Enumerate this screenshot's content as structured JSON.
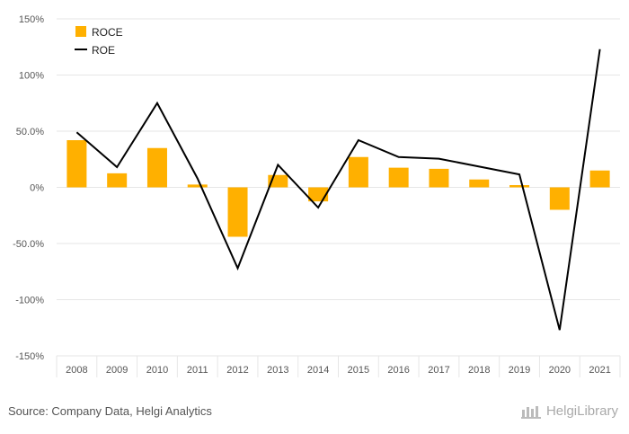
{
  "chart_data": {
    "type": "bar",
    "categories": [
      "2008",
      "2009",
      "2010",
      "2011",
      "2012",
      "2013",
      "2014",
      "2015",
      "2016",
      "2017",
      "2018",
      "2019",
      "2020",
      "2021"
    ],
    "series": [
      {
        "name": "ROCE",
        "kind": "bar",
        "color": "#FFB000",
        "values": [
          42,
          12.5,
          35,
          2.5,
          -44,
          11,
          -12.5,
          27,
          17.5,
          16.5,
          7,
          2,
          -20,
          15
        ]
      },
      {
        "name": "ROE",
        "kind": "line",
        "color": "#000000",
        "values": [
          49,
          18,
          75,
          8,
          -72,
          20,
          -18,
          42,
          27,
          25.5,
          18.5,
          11.5,
          -127,
          123
        ]
      }
    ],
    "ylim": [
      -150,
      150
    ],
    "yticks": [
      150,
      100,
      50,
      0,
      -50,
      -100,
      -150
    ],
    "ytick_labels": [
      "150%",
      "100%",
      "50.0%",
      "0%",
      "-50.0%",
      "-100%",
      "-150%"
    ],
    "legend": [
      "ROCE",
      "ROE"
    ],
    "grid": true,
    "title": "",
    "xlabel": "",
    "ylabel": ""
  },
  "footer": {
    "source": "Source: Company Data, Helgi Analytics",
    "brand": "HelgiLibrary"
  }
}
